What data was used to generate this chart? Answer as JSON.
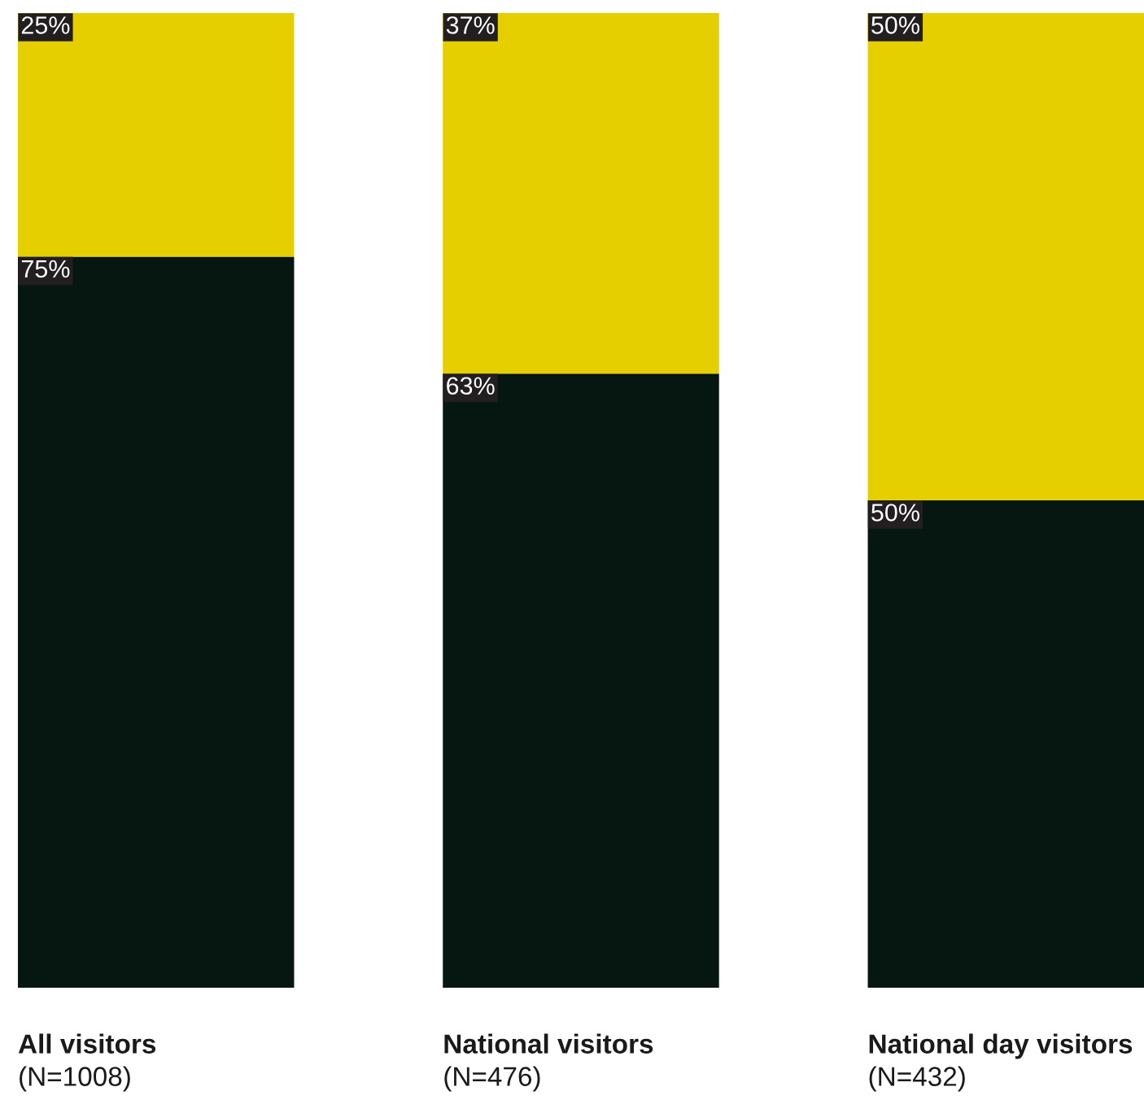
{
  "chart_data": {
    "type": "bar",
    "stacked": true,
    "categories": [
      "All visitors\n(N=1008)",
      "National visitors\n(N=476)",
      "National day visitors\n(N=432)"
    ],
    "series": [
      {
        "color": "#061610",
        "values": [
          75,
          63,
          50
        ],
        "value_labels": [
          "75%",
          "63%",
          "50%"
        ]
      },
      {
        "color": "#e5cf00",
        "values": [
          25,
          37,
          50
        ],
        "value_labels": [
          "25%",
          "37%",
          "50%"
        ]
      }
    ],
    "ylim": [
      0,
      100
    ],
    "tick_labels": "x"
  }
}
